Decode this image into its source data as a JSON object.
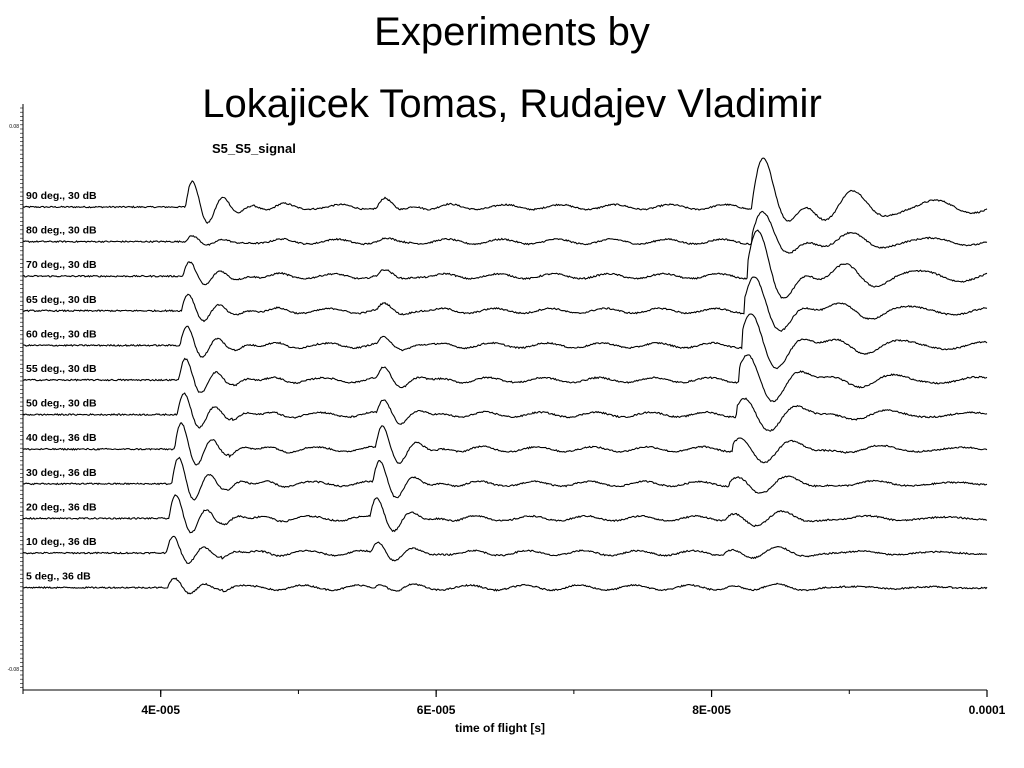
{
  "slide": {
    "title_line1": "Experiments by",
    "title_line2": "Lokajicek Tomas, Rudajev Vladimir"
  },
  "chart_data": {
    "type": "line",
    "title": "S5_S5_signal",
    "xlabel": "time of flight [s]",
    "ylabel": "",
    "xlim": [
      3e-05,
      0.0001
    ],
    "x_ticks": [
      {
        "value": 4e-05,
        "label": "4E-005"
      },
      {
        "value": 6e-05,
        "label": "6E-005"
      },
      {
        "value": 8e-05,
        "label": "8E-005"
      },
      {
        "value": 0.0001,
        "label": "0.0001"
      }
    ],
    "y_ticks": [
      {
        "value": 0.08,
        "label": "0.08"
      },
      {
        "value": -0.08,
        "label": "-0.08"
      }
    ],
    "grid": false,
    "legend": "none",
    "line_color": "#000000",
    "series": [
      {
        "name": "90 deg., 30 dB",
        "p_arrival": 4.18e-05,
        "p_amp": 0.055,
        "s1_arrival": 5.57e-05,
        "s1_amp": 0.018,
        "s2_arrival": 8.29e-05,
        "s2_amp": 0.07
      },
      {
        "name": "80 deg., 30 dB",
        "p_arrival": 4.18e-05,
        "p_amp": 0.012,
        "s1_arrival": 5.57e-05,
        "s1_amp": 0.004,
        "s2_arrival": 8.29e-05,
        "s2_amp": 0.04
      },
      {
        "name": "70 deg., 30 dB",
        "p_arrival": 4.16e-05,
        "p_amp": 0.03,
        "s1_arrival": 5.57e-05,
        "s1_amp": 0.01,
        "s2_arrival": 8.26e-05,
        "s2_amp": 0.06
      },
      {
        "name": "65 deg., 30 dB",
        "p_arrival": 4.15e-05,
        "p_amp": 0.035,
        "s1_arrival": 5.57e-05,
        "s1_amp": 0.012,
        "s2_arrival": 8.24e-05,
        "s2_amp": 0.045
      },
      {
        "name": "60 deg., 30 dB",
        "p_arrival": 4.14e-05,
        "p_amp": 0.04,
        "s1_arrival": 5.57e-05,
        "s1_amp": 0.014,
        "s2_arrival": 8.22e-05,
        "s2_amp": 0.045
      },
      {
        "name": "55 deg., 30 dB",
        "p_arrival": 4.13e-05,
        "p_amp": 0.045,
        "s1_arrival": 5.57e-05,
        "s1_amp": 0.025,
        "s2_arrival": 8.2e-05,
        "s2_amp": 0.04
      },
      {
        "name": "50 deg., 30 dB",
        "p_arrival": 4.12e-05,
        "p_amp": 0.045,
        "s1_arrival": 5.57e-05,
        "s1_amp": 0.03,
        "s2_arrival": 8.18e-05,
        "s2_amp": 0.03
      },
      {
        "name": "40 deg., 36 dB",
        "p_arrival": 4.1e-05,
        "p_amp": 0.055,
        "s1_arrival": 5.56e-05,
        "s1_amp": 0.05,
        "s2_arrival": 8.15e-05,
        "s2_amp": 0.025
      },
      {
        "name": "30 deg., 36 dB",
        "p_arrival": 4.08e-05,
        "p_amp": 0.055,
        "s1_arrival": 5.54e-05,
        "s1_amp": 0.05,
        "s2_arrival": 8.13e-05,
        "s2_amp": 0.02
      },
      {
        "name": "20 deg., 36 dB",
        "p_arrival": 4.06e-05,
        "p_amp": 0.05,
        "s1_arrival": 5.52e-05,
        "s1_amp": 0.045,
        "s2_arrival": 8.1e-05,
        "s2_amp": 0.018
      },
      {
        "name": "10 deg., 36 dB",
        "p_arrival": 4.04e-05,
        "p_amp": 0.035,
        "s1_arrival": 5.53e-05,
        "s1_amp": 0.025,
        "s2_arrival": 8.08e-05,
        "s2_amp": 0.015
      },
      {
        "name": "5 deg., 36 dB",
        "p_arrival": 4.05e-05,
        "p_amp": 0.02,
        "s1_arrival": 5.55e-05,
        "s1_amp": 0.01,
        "s2_arrival": 8.08e-05,
        "s2_amp": 0.01
      }
    ]
  }
}
